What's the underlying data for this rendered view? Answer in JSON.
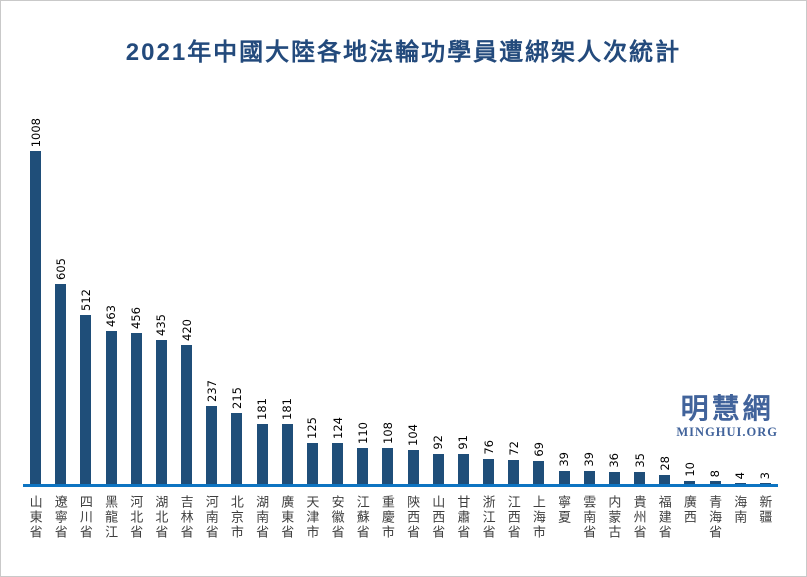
{
  "title": "2021年中國大陸各地法輪功學員遭綁架人次統計",
  "watermark": {
    "logo_text": "明慧網",
    "site": "MINGHUI.ORG"
  },
  "colors": {
    "title": "#234A7C",
    "bar": "#1F4E79",
    "axis_line": "#0D74C2",
    "value_label": "#000000",
    "category_label": "#3F3F3F",
    "watermark": "#41639B"
  },
  "chart_data": {
    "type": "bar",
    "title": "2021年中國大陸各地法輪功學員遭綁架人次統計",
    "categories": [
      "山東省",
      "遼寧省",
      "四川省",
      "黑龍江",
      "河北省",
      "湖北省",
      "吉林省",
      "河南省",
      "北京市",
      "湖南省",
      "廣東省",
      "天津市",
      "安徽省",
      "江蘇省",
      "重慶市",
      "陝西省",
      "山西省",
      "甘肅省",
      "浙江省",
      "江西省",
      "上海市",
      "寧夏",
      "雲南省",
      "内蒙古",
      "貴州省",
      "福建省",
      "廣西",
      "青海省",
      "海南",
      "新疆"
    ],
    "values": [
      1008,
      605,
      512,
      463,
      456,
      435,
      420,
      237,
      215,
      181,
      181,
      125,
      124,
      110,
      108,
      104,
      92,
      91,
      76,
      72,
      69,
      39,
      39,
      36,
      35,
      28,
      10,
      8,
      4,
      3
    ],
    "xlabel": "",
    "ylabel": "",
    "ylim": [
      0,
      1030
    ],
    "grid": false,
    "legend": null,
    "value_labels_shown": true,
    "value_label_rotation": 90,
    "category_label_orientation": "vertical-upright",
    "bar_color": "#1F4E79"
  }
}
